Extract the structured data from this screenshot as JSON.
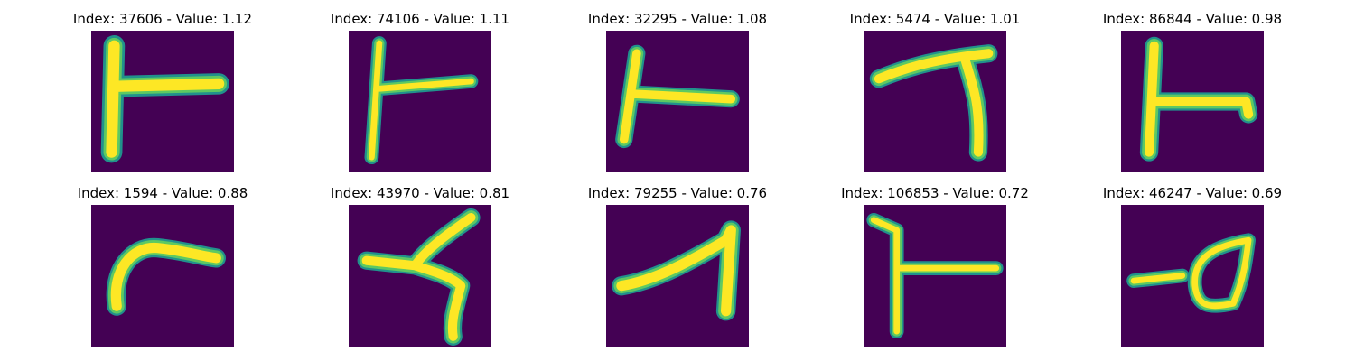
{
  "figure": {
    "panels": [
      {
        "title": "Index: 37606 - Value: 1.12",
        "glyph": "rotated-one-stroke-left-vertical-right-bar"
      },
      {
        "title": "Index: 74106 - Value: 1.11",
        "glyph": "thin-rotated-one-vertical-right-bar"
      },
      {
        "title": "Index: 32295 - Value: 1.08",
        "glyph": "rotated-one-vertical-right-bar"
      },
      {
        "title": "Index: 5474 - Value: 1.01",
        "glyph": "rotated-seven-arch"
      },
      {
        "title": "Index: 86844 - Value: 0.98",
        "glyph": "rotated-one-vertical-right-bar-hook"
      },
      {
        "title": "Index: 1594 - Value: 0.88",
        "glyph": "curved-arc-stroke"
      },
      {
        "title": "Index: 43970 - Value: 0.81",
        "glyph": "zigzag-stroke"
      },
      {
        "title": "Index: 79255 - Value: 0.76",
        "glyph": "rotated-seven-angle"
      },
      {
        "title": "Index: 106853 - Value: 0.72",
        "glyph": "thin-rotated-one-vertical-right-bar"
      },
      {
        "title": "Index: 46247 - Value: 0.69",
        "glyph": "loop-with-tail"
      }
    ]
  }
}
